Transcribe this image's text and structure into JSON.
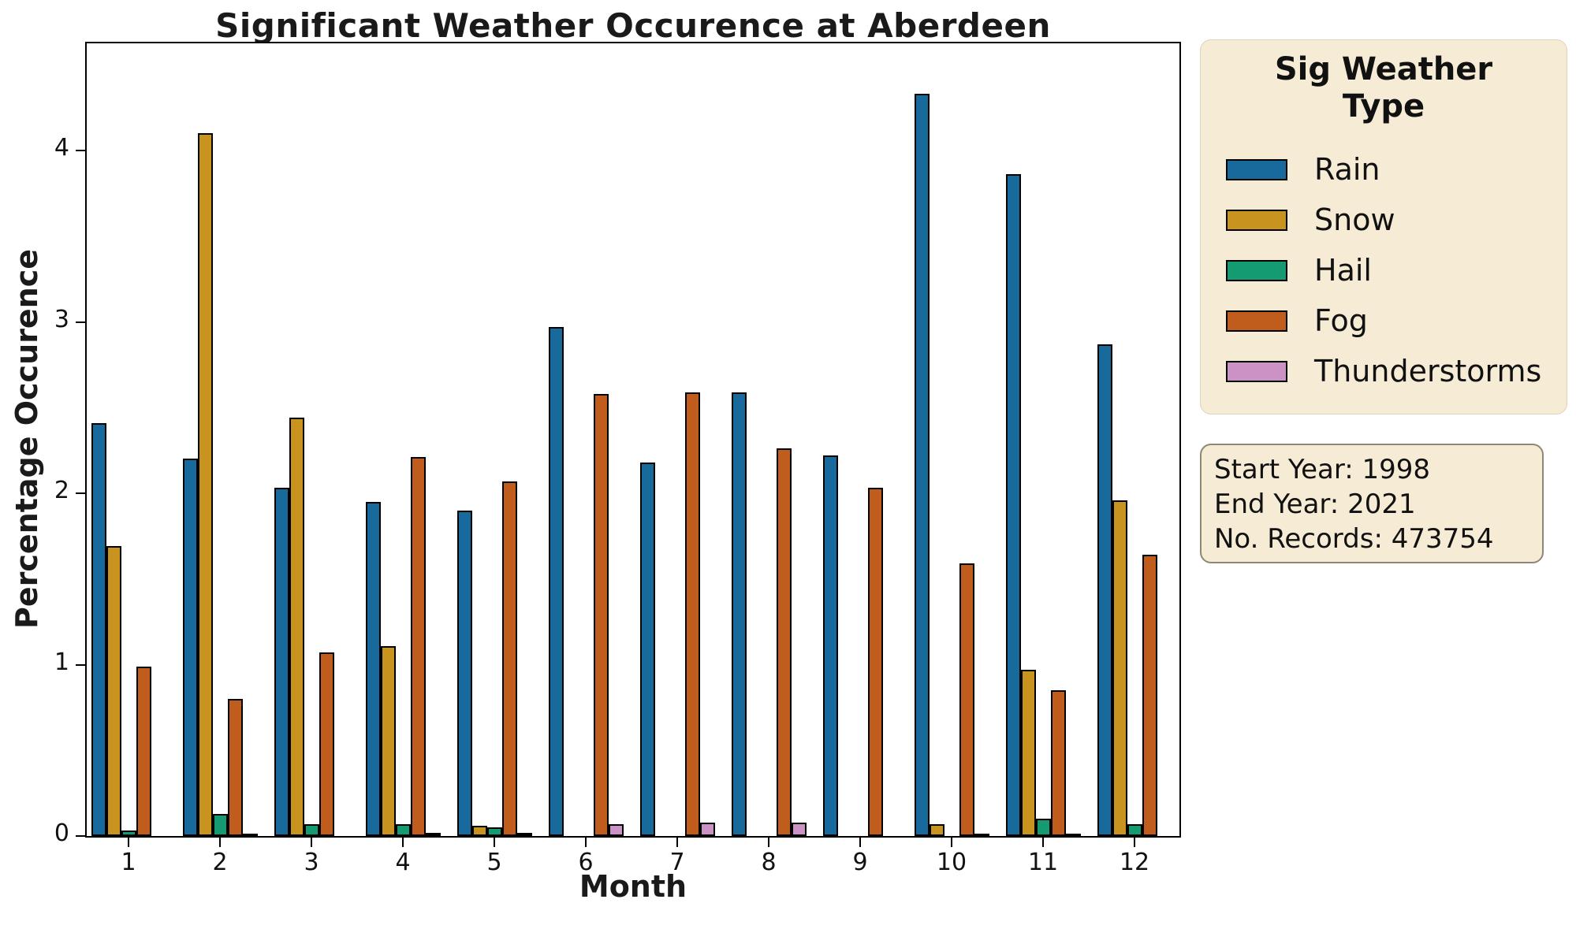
{
  "title": "Significant Weather Occurence at Aberdeen",
  "axes": {
    "x_label": "Month",
    "y_label": "Percentage Occurence",
    "y_ticks": [
      0,
      1,
      2,
      3,
      4
    ],
    "x_ticks": [
      "1",
      "2",
      "3",
      "4",
      "5",
      "6",
      "7",
      "8",
      "9",
      "10",
      "11",
      "12"
    ]
  },
  "legend": {
    "title_line1": "Sig Weather",
    "title_line2": "Type",
    "items": [
      {
        "label": "Rain",
        "color": "#186a9d"
      },
      {
        "label": "Snow",
        "color": "#c8931f"
      },
      {
        "label": "Hail",
        "color": "#149b72"
      },
      {
        "label": "Fog",
        "color": "#c05d1c"
      },
      {
        "label": "Thunderstorms",
        "color": "#cd92c5"
      }
    ]
  },
  "info_box": {
    "lines": [
      "Start Year: 1998",
      "End Year: 2021",
      "No. Records: 473754"
    ]
  },
  "chart_data": {
    "type": "bar",
    "title": "Significant Weather Occurence at Aberdeen",
    "xlabel": "Month",
    "ylabel": "Percentage Occurence",
    "categories": [
      1,
      2,
      3,
      4,
      5,
      6,
      7,
      8,
      9,
      10,
      11,
      12
    ],
    "ylim": [
      0,
      4.63
    ],
    "yticks": [
      0,
      1,
      2,
      3,
      4
    ],
    "grid": false,
    "legend_title": "Sig Weather Type",
    "legend_position": "outside-upper-right",
    "bar_edge_color": "#000000",
    "series": [
      {
        "name": "Rain",
        "color": "#186a9d",
        "values": [
          2.41,
          2.2,
          2.03,
          1.95,
          1.9,
          2.97,
          2.18,
          2.59,
          2.22,
          4.33,
          3.86,
          2.87
        ]
      },
      {
        "name": "Snow",
        "color": "#c8931f",
        "values": [
          1.69,
          4.1,
          2.44,
          1.11,
          0.06,
          0,
          0,
          0,
          0,
          0.07,
          0.97,
          1.96
        ]
      },
      {
        "name": "Hail",
        "color": "#149b72",
        "values": [
          0.03,
          0.13,
          0.07,
          0.07,
          0.05,
          0,
          0,
          0,
          0,
          0,
          0.1,
          0.07
        ]
      },
      {
        "name": "Fog",
        "color": "#c05d1c",
        "values": [
          0.99,
          0.8,
          1.07,
          2.21,
          2.07,
          2.58,
          2.59,
          2.26,
          2.03,
          1.59,
          0.85,
          1.64
        ]
      },
      {
        "name": "Thunderstorms",
        "color": "#cd92c5",
        "values": [
          0,
          0.01,
          0,
          0.02,
          0.02,
          0.07,
          0.08,
          0.08,
          0,
          0.01,
          0.01,
          0
        ]
      }
    ],
    "annotations": [
      "Start Year: 1998",
      "End Year: 2021",
      "No. Records: 473754"
    ]
  }
}
